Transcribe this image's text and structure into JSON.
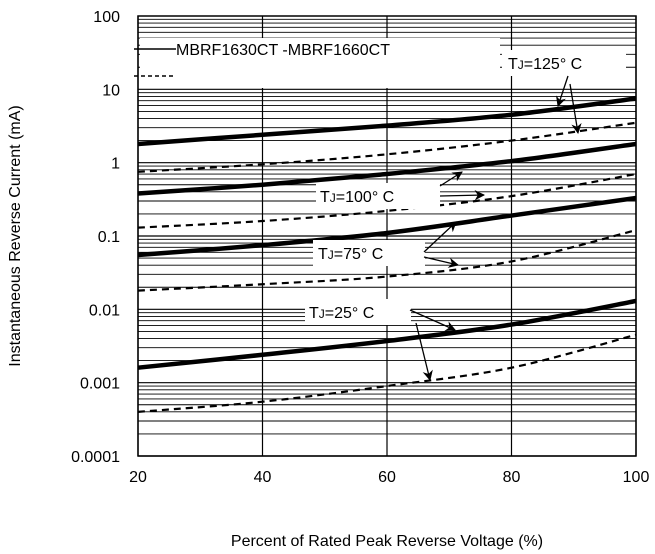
{
  "chart_data": {
    "type": "line",
    "title": "",
    "xlabel": "Percent of Rated Peak Reverse Voltage (%)",
    "ylabel": "Instantaneous Reverse Current (mA)",
    "xlim": [
      20,
      100
    ],
    "ylim": [
      0.0001,
      100
    ],
    "y_scale": "log",
    "grid": true,
    "x_ticks": [
      20,
      40,
      60,
      80,
      100
    ],
    "x_tick_labels": [
      "20",
      "40",
      "60",
      "80",
      "100"
    ],
    "y_ticks": [
      0.0001,
      0.001,
      0.01,
      0.1,
      1,
      10,
      100
    ],
    "y_tick_labels": [
      "0.0001",
      "0.001",
      "0.01",
      "0.1",
      "1",
      "10",
      "100"
    ],
    "legend": {
      "placement": "top-left",
      "entries": [
        {
          "label": "MBRF1630CT -MBRF1660CT",
          "style": "solid"
        },
        {
          "label": "",
          "style": "dashed"
        }
      ]
    },
    "series": [
      {
        "group": "125",
        "style": "solid",
        "x": [
          20,
          40,
          60,
          80,
          100
        ],
        "y": [
          1.8,
          2.4,
          3.2,
          4.5,
          7.5
        ]
      },
      {
        "group": "125",
        "style": "dashed",
        "x": [
          20,
          40,
          60,
          80,
          100
        ],
        "y": [
          0.75,
          0.95,
          1.3,
          2.0,
          3.5
        ]
      },
      {
        "group": "100",
        "style": "solid",
        "x": [
          20,
          40,
          60,
          80,
          100
        ],
        "y": [
          0.38,
          0.5,
          0.7,
          1.05,
          1.8
        ]
      },
      {
        "group": "100",
        "style": "dashed",
        "x": [
          20,
          40,
          60,
          80,
          100
        ],
        "y": [
          0.13,
          0.16,
          0.22,
          0.35,
          0.7
        ]
      },
      {
        "group": "75",
        "style": "solid",
        "x": [
          20,
          40,
          60,
          80,
          100
        ],
        "y": [
          0.055,
          0.075,
          0.11,
          0.19,
          0.33
        ]
      },
      {
        "group": "75",
        "style": "dashed",
        "x": [
          20,
          40,
          60,
          80,
          100
        ],
        "y": [
          0.018,
          0.022,
          0.028,
          0.045,
          0.12
        ]
      },
      {
        "group": "25",
        "style": "solid",
        "x": [
          20,
          40,
          60,
          80,
          100
        ],
        "y": [
          0.0016,
          0.0024,
          0.0037,
          0.0062,
          0.013
        ]
      },
      {
        "group": "25",
        "style": "dashed",
        "x": [
          20,
          40,
          60,
          80,
          100
        ],
        "y": [
          0.0004,
          0.00055,
          0.0009,
          0.0016,
          0.0045
        ]
      }
    ],
    "annotations": [
      {
        "label": "TJ=125° C",
        "sub_prefix": "T",
        "sub": "J",
        "rest": "=125° C",
        "group": "125"
      },
      {
        "label": "TJ=100° C",
        "sub_prefix": "T",
        "sub": "J",
        "rest": "=100° C",
        "group": "100"
      },
      {
        "label": "TJ=75° C",
        "sub_prefix": "T",
        "sub": "J",
        "rest": "=75° C",
        "group": "75"
      },
      {
        "label": "TJ=25° C",
        "sub_prefix": "T",
        "sub": "J",
        "rest": "=25° C",
        "group": "25"
      }
    ]
  }
}
